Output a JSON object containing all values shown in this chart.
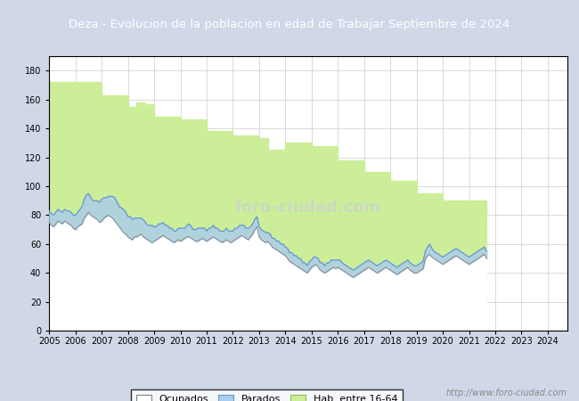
{
  "title": "Deza - Evolucion de la poblacion en edad de Trabajar Septiembre de 2024",
  "title_bg": "#4472c4",
  "title_color": "white",
  "ylim": [
    0,
    190
  ],
  "yticks": [
    0,
    20,
    40,
    60,
    80,
    100,
    120,
    140,
    160,
    180
  ],
  "grid_color": "#cccccc",
  "plot_bg": "white",
  "outer_bg": "#d0d8e8",
  "watermark": "foro-ciudad.com",
  "legend_labels": [
    "Ocupados",
    "Parados",
    "Hab. entre 16-64"
  ],
  "hab_color": "#ccee99",
  "ocup_color": "white",
  "par_color": "#aaccee",
  "line_ocup_color": "#888888",
  "line_par_color": "#6699cc",
  "hab_16_64": [
    172,
    172,
    172,
    172,
    172,
    172,
    172,
    172,
    172,
    172,
    172,
    172,
    172,
    172,
    172,
    172,
    172,
    172,
    172,
    172,
    172,
    172,
    172,
    172,
    163,
    163,
    163,
    163,
    163,
    163,
    163,
    163,
    163,
    163,
    163,
    163,
    155,
    155,
    155,
    155,
    158,
    158,
    158,
    158,
    157,
    157,
    157,
    157,
    148,
    148,
    148,
    148,
    148,
    148,
    148,
    148,
    148,
    148,
    148,
    148,
    146,
    146,
    146,
    146,
    146,
    146,
    146,
    146,
    146,
    146,
    146,
    146,
    138,
    138,
    138,
    138,
    138,
    138,
    138,
    138,
    138,
    138,
    138,
    138,
    135,
    135,
    135,
    135,
    135,
    135,
    135,
    135,
    135,
    135,
    135,
    135,
    133,
    133,
    133,
    133,
    125,
    125,
    125,
    125,
    125,
    125,
    125,
    125,
    130,
    130,
    130,
    130,
    130,
    130,
    130,
    130,
    130,
    130,
    130,
    130,
    128,
    128,
    128,
    128,
    128,
    128,
    128,
    128,
    128,
    128,
    128,
    128,
    118,
    118,
    118,
    118,
    118,
    118,
    118,
    118,
    118,
    118,
    118,
    118,
    110,
    110,
    110,
    110,
    110,
    110,
    110,
    110,
    110,
    110,
    110,
    110,
    104,
    104,
    104,
    104,
    104,
    104,
    104,
    104,
    104,
    104,
    104,
    104,
    95,
    95,
    95,
    95,
    95,
    95,
    95,
    95,
    95,
    95,
    95,
    95,
    90,
    90,
    90,
    90,
    90,
    90,
    90,
    90,
    90,
    90,
    90,
    90,
    90,
    90,
    90,
    90,
    90,
    90,
    90,
    90,
    90
  ],
  "ocupados": [
    75,
    73,
    72,
    74,
    76,
    75,
    74,
    76,
    75,
    74,
    73,
    71,
    70,
    72,
    73,
    74,
    78,
    80,
    82,
    80,
    79,
    78,
    77,
    75,
    76,
    78,
    79,
    80,
    79,
    78,
    76,
    74,
    72,
    70,
    68,
    67,
    65,
    64,
    63,
    65,
    65,
    66,
    67,
    65,
    64,
    63,
    62,
    61,
    62,
    63,
    64,
    65,
    66,
    65,
    64,
    63,
    62,
    61,
    62,
    63,
    62,
    63,
    64,
    65,
    65,
    64,
    63,
    62,
    62,
    63,
    64,
    63,
    62,
    63,
    64,
    65,
    64,
    63,
    62,
    61,
    62,
    63,
    62,
    61,
    62,
    63,
    64,
    65,
    66,
    65,
    64,
    63,
    65,
    67,
    70,
    72,
    65,
    63,
    62,
    61,
    62,
    60,
    58,
    57,
    56,
    55,
    54,
    53,
    52,
    50,
    48,
    47,
    46,
    45,
    44,
    43,
    42,
    41,
    40,
    42,
    44,
    45,
    46,
    44,
    42,
    41,
    40,
    41,
    42,
    43,
    44,
    43,
    44,
    43,
    42,
    41,
    40,
    39,
    38,
    37,
    38,
    39,
    40,
    41,
    42,
    43,
    44,
    43,
    42,
    41,
    40,
    41,
    42,
    43,
    44,
    43,
    42,
    41,
    40,
    39,
    40,
    41,
    42,
    43,
    44,
    42,
    41,
    40,
    40,
    41,
    42,
    43,
    50,
    52,
    53,
    51,
    50,
    49,
    48,
    47,
    46,
    47,
    48,
    49,
    50,
    51,
    52,
    51,
    50,
    49,
    48,
    47,
    46,
    47,
    48,
    49,
    50,
    51,
    52,
    53,
    50
  ],
  "parados": [
    8,
    8,
    8,
    8,
    8,
    8,
    8,
    8,
    8,
    9,
    9,
    9,
    10,
    10,
    11,
    12,
    13,
    14,
    13,
    12,
    11,
    12,
    13,
    14,
    15,
    14,
    13,
    13,
    14,
    15,
    16,
    15,
    14,
    15,
    16,
    15,
    14,
    15,
    14,
    13,
    13,
    12,
    11,
    12,
    11,
    10,
    11,
    12,
    10,
    9,
    10,
    9,
    9,
    8,
    9,
    8,
    9,
    8,
    7,
    8,
    9,
    8,
    7,
    8,
    9,
    8,
    7,
    8,
    9,
    8,
    7,
    8,
    7,
    8,
    7,
    8,
    7,
    8,
    7,
    8,
    7,
    8,
    7,
    8,
    7,
    8,
    7,
    8,
    7,
    8,
    7,
    8,
    7,
    7,
    7,
    7,
    7,
    7,
    7,
    7,
    6,
    7,
    6,
    7,
    6,
    7,
    6,
    7,
    6,
    7,
    6,
    7,
    6,
    7,
    6,
    7,
    5,
    6,
    5,
    6,
    5,
    6,
    5,
    6,
    5,
    6,
    5,
    6,
    5,
    6,
    5,
    6,
    5,
    6,
    5,
    5,
    5,
    5,
    5,
    5,
    5,
    5,
    5,
    5,
    5,
    5,
    5,
    5,
    5,
    5,
    5,
    5,
    5,
    5,
    5,
    5,
    5,
    5,
    5,
    5,
    5,
    5,
    5,
    5,
    5,
    5,
    5,
    5,
    5,
    5,
    5,
    5,
    5,
    6,
    7,
    6,
    5,
    5,
    5,
    5,
    5,
    5,
    5,
    5,
    5,
    5,
    5,
    5,
    5,
    5,
    5,
    5,
    5,
    5,
    5,
    5,
    5,
    5,
    5,
    5,
    5
  ]
}
